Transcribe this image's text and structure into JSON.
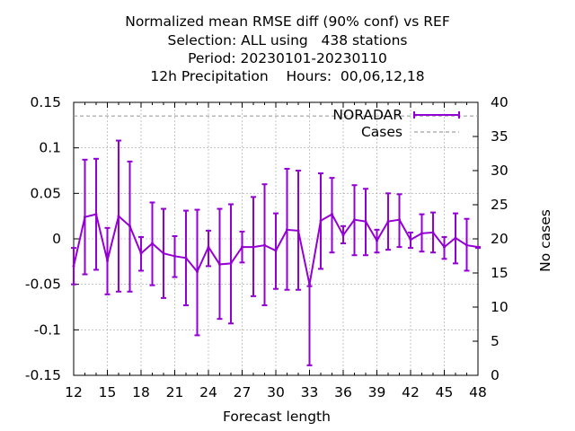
{
  "chart_data": {
    "type": "line",
    "title_lines": [
      "Normalized mean RMSE diff (90% conf) vs REF",
      "Selection: ALL using   438 stations",
      "Period: 20230101-20230110",
      "12h Precipitation    Hours:  00,06,12,18"
    ],
    "xlabel": "Forecast length",
    "ylabel": "",
    "y2label": "No cases",
    "xlim": [
      12,
      48
    ],
    "ylim": [
      -0.15,
      0.15
    ],
    "y2lim": [
      0,
      40
    ],
    "xticks": [
      12,
      15,
      18,
      21,
      24,
      27,
      30,
      33,
      36,
      39,
      42,
      45,
      48
    ],
    "yticks": [
      -0.15,
      -0.1,
      -0.05,
      0,
      0.05,
      0.1,
      0.15
    ],
    "ytick_labels": [
      "-0.15",
      "-0.1",
      "-0.05",
      "0",
      "0.05",
      "0.1",
      "0.15"
    ],
    "y2ticks": [
      0,
      5,
      10,
      15,
      20,
      25,
      30,
      35,
      40
    ],
    "grid": true,
    "legend_position": "top-right",
    "series": [
      {
        "name": "NORADAR",
        "color": "#9400d3",
        "x": [
          12,
          13,
          14,
          15,
          16,
          17,
          18,
          19,
          20,
          21,
          22,
          23,
          24,
          25,
          26,
          27,
          28,
          29,
          30,
          31,
          32,
          33,
          34,
          35,
          36,
          37,
          38,
          39,
          40,
          41,
          42,
          43,
          44,
          45,
          46,
          47,
          48
        ],
        "y": [
          -0.03,
          0.024,
          0.027,
          -0.024,
          0.025,
          0.014,
          -0.016,
          -0.005,
          -0.016,
          -0.019,
          -0.021,
          -0.036,
          -0.009,
          -0.028,
          -0.027,
          -0.009,
          -0.009,
          -0.007,
          -0.013,
          0.01,
          0.009,
          -0.05,
          0.02,
          0.027,
          0.004,
          0.021,
          0.019,
          -0.002,
          0.019,
          0.021,
          -0.001,
          0.006,
          0.007,
          -0.009,
          0.001,
          -0.007,
          -0.009
        ],
        "err_low": [
          -0.05,
          -0.039,
          -0.034,
          -0.061,
          -0.058,
          -0.058,
          -0.035,
          -0.051,
          -0.065,
          -0.042,
          -0.073,
          -0.106,
          -0.03,
          -0.088,
          -0.093,
          -0.026,
          -0.063,
          -0.073,
          -0.055,
          -0.056,
          -0.056,
          -0.139,
          -0.033,
          -0.015,
          -0.005,
          -0.018,
          -0.018,
          -0.015,
          -0.012,
          -0.009,
          -0.01,
          -0.014,
          -0.015,
          -0.022,
          -0.027,
          -0.035,
          -0.01
        ],
        "err_high": [
          -0.01,
          0.087,
          0.088,
          0.012,
          0.108,
          0.085,
          0.002,
          0.04,
          0.033,
          0.003,
          0.031,
          0.032,
          0.009,
          0.033,
          0.038,
          0.008,
          0.046,
          0.06,
          0.028,
          0.077,
          0.075,
          -0.052,
          0.072,
          0.067,
          0.014,
          0.059,
          0.055,
          0.01,
          0.05,
          0.049,
          0.007,
          0.027,
          0.029,
          0.002,
          0.028,
          0.022,
          -0.009
        ]
      },
      {
        "name": "Cases",
        "color": "#a0a0a0",
        "dashed": true,
        "axis": "y2",
        "constant": 38
      }
    ]
  }
}
